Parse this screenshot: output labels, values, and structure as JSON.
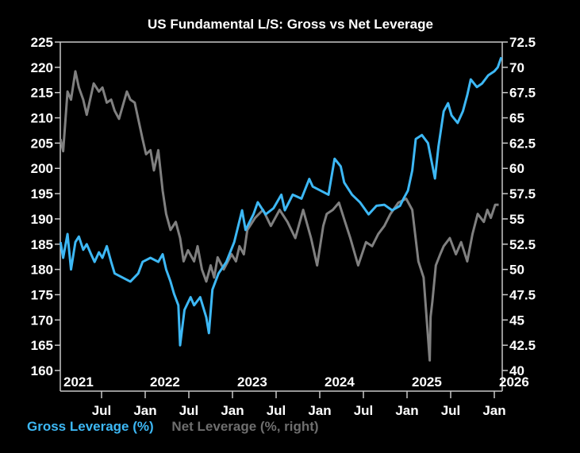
{
  "chart_data": {
    "type": "line",
    "title": "US Fundamental L/S: Gross vs Net Leverage",
    "xlabel": "",
    "ylabel": "",
    "ylabel_right": "",
    "x_axis": {
      "range": [
        2021.0,
        2026.05
      ],
      "year_labels": [
        {
          "label": "2021",
          "x": 2021.0
        },
        {
          "label": "2022",
          "x": 2022.0
        },
        {
          "label": "2023",
          "x": 2023.0
        },
        {
          "label": "2024",
          "x": 2024.0
        },
        {
          "label": "2025",
          "x": 2025.0
        },
        {
          "label": "2026",
          "x": 2026.0
        }
      ],
      "month_ticks": [
        {
          "label": "Jul",
          "x": 2021.5
        },
        {
          "label": "Jan",
          "x": 2022.0
        },
        {
          "label": "Jul",
          "x": 2022.5
        },
        {
          "label": "Jan",
          "x": 2023.0
        },
        {
          "label": "Jul",
          "x": 2023.5
        },
        {
          "label": "Jan",
          "x": 2024.0
        },
        {
          "label": "Jul",
          "x": 2024.5
        },
        {
          "label": "Jan",
          "x": 2025.0
        },
        {
          "label": "Jul",
          "x": 2025.5
        },
        {
          "label": "Jan",
          "x": 2026.0
        }
      ]
    },
    "y_left": {
      "range": [
        160,
        225
      ],
      "ticks": [
        160,
        165,
        170,
        175,
        180,
        185,
        190,
        195,
        200,
        205,
        210,
        215,
        220,
        225
      ]
    },
    "y_right": {
      "range": [
        40,
        72.5
      ],
      "ticks": [
        "40",
        "42.5",
        "45",
        "47.5",
        "50",
        "52.5",
        "55",
        "57.5",
        "60",
        "62.5",
        "65",
        "67.5",
        "70",
        "72.5"
      ]
    },
    "grid": false,
    "legend_position": "bottom-left",
    "series": [
      {
        "name": "Gross Leverage (%)",
        "axis": "left",
        "color": "#3db8f5",
        "x": [
          2021.03,
          2021.06,
          2021.11,
          2021.15,
          2021.2,
          2021.24,
          2021.29,
          2021.33,
          2021.38,
          2021.42,
          2021.47,
          2021.51,
          2021.56,
          2021.61,
          2021.65,
          2021.74,
          2021.83,
          2021.92,
          2021.97,
          2022.06,
          2022.15,
          2022.2,
          2022.24,
          2022.29,
          2022.33,
          2022.38,
          2022.4,
          2022.45,
          2022.52,
          2022.56,
          2022.63,
          2022.7,
          2022.73,
          2022.77,
          2022.84,
          2022.93,
          2023.02,
          2023.11,
          2023.15,
          2023.24,
          2023.29,
          2023.38,
          2023.47,
          2023.56,
          2023.6,
          2023.69,
          2023.79,
          2023.88,
          2023.92,
          2024.01,
          2024.1,
          2024.17,
          2024.24,
          2024.28,
          2024.37,
          2024.46,
          2024.56,
          2024.65,
          2024.74,
          2024.83,
          2024.92,
          2024.96,
          2025.01,
          2025.06,
          2025.1,
          2025.17,
          2025.24,
          2025.32,
          2025.36,
          2025.42,
          2025.47,
          2025.51,
          2025.58,
          2025.64,
          2025.69,
          2025.73,
          2025.8,
          2025.86,
          2025.93,
          2026.0,
          2026.04,
          2026.08
        ],
        "values": [
          185.4,
          182.3,
          187.0,
          180.0,
          185.4,
          186.5,
          183.9,
          185.0,
          183.0,
          181.5,
          183.4,
          182.3,
          184.6,
          181.5,
          179.2,
          178.4,
          177.6,
          179.2,
          181.5,
          182.3,
          181.5,
          183.0,
          180.0,
          177.6,
          175.2,
          172.9,
          165.0,
          172.0,
          174.5,
          172.9,
          174.5,
          170.5,
          167.4,
          176.0,
          179.2,
          181.5,
          185.4,
          191.7,
          187.8,
          190.9,
          193.3,
          190.9,
          192.1,
          194.8,
          191.7,
          194.8,
          194.0,
          197.9,
          196.4,
          195.6,
          194.8,
          201.9,
          200.4,
          197.2,
          194.8,
          193.3,
          190.9,
          192.6,
          192.8,
          191.7,
          192.6,
          194.0,
          195.6,
          199.6,
          205.8,
          206.6,
          205.0,
          198.0,
          204.3,
          211.3,
          212.9,
          210.5,
          209.0,
          211.3,
          214.5,
          217.6,
          216.1,
          216.8,
          218.4,
          219.2,
          220.0,
          222.0
        ]
      },
      {
        "name": "Net Leverage (%, right)",
        "axis": "right",
        "color": "#808080",
        "x": [
          2021.03,
          2021.06,
          2021.11,
          2021.15,
          2021.2,
          2021.24,
          2021.29,
          2021.33,
          2021.41,
          2021.47,
          2021.51,
          2021.56,
          2021.61,
          2021.65,
          2021.7,
          2021.74,
          2021.79,
          2021.83,
          2021.88,
          2021.92,
          2021.97,
          2022.01,
          2022.06,
          2022.1,
          2022.15,
          2022.2,
          2022.24,
          2022.29,
          2022.35,
          2022.4,
          2022.44,
          2022.49,
          2022.56,
          2022.6,
          2022.65,
          2022.7,
          2022.75,
          2022.79,
          2022.83,
          2022.9,
          2022.99,
          2023.04,
          2023.08,
          2023.13,
          2023.17,
          2023.26,
          2023.35,
          2023.44,
          2023.54,
          2023.63,
          2023.72,
          2023.81,
          2023.9,
          2023.97,
          2024.04,
          2024.08,
          2024.15,
          2024.22,
          2024.29,
          2024.35,
          2024.44,
          2024.53,
          2024.6,
          2024.67,
          2024.74,
          2024.81,
          2024.9,
          2024.99,
          2025.06,
          2025.13,
          2025.19,
          2025.22,
          2025.26,
          2025.27,
          2025.29,
          2025.33,
          2025.38,
          2025.42,
          2025.49,
          2025.56,
          2025.62,
          2025.69,
          2025.75,
          2025.81,
          2025.88,
          2025.92,
          2025.96,
          2026.01,
          2026.05
        ],
        "values": [
          62.9,
          61.7,
          67.6,
          66.8,
          69.6,
          68.0,
          66.8,
          65.3,
          68.4,
          67.6,
          68.0,
          66.5,
          66.8,
          65.7,
          64.9,
          66.1,
          67.6,
          66.8,
          66.5,
          64.9,
          62.9,
          61.4,
          61.8,
          59.8,
          61.8,
          57.8,
          55.5,
          53.9,
          54.7,
          53.1,
          50.8,
          51.9,
          50.8,
          52.3,
          50.0,
          48.8,
          50.4,
          49.2,
          51.2,
          50.0,
          51.5,
          50.8,
          52.3,
          51.5,
          53.9,
          55.1,
          55.9,
          54.3,
          55.9,
          54.7,
          53.1,
          55.9,
          53.1,
          50.4,
          54.3,
          55.5,
          55.9,
          56.6,
          54.7,
          53.1,
          50.4,
          52.7,
          52.3,
          53.5,
          54.3,
          55.5,
          56.6,
          57.0,
          55.9,
          50.8,
          49.2,
          45.7,
          41.0,
          45.3,
          46.8,
          50.4,
          51.5,
          52.3,
          53.1,
          51.5,
          52.7,
          50.8,
          53.5,
          55.5,
          54.7,
          55.9,
          55.1,
          56.4,
          56.4
        ]
      }
    ]
  },
  "legend": {
    "gross_label": "Gross Leverage (%)",
    "net_label": "Net Leverage (%, right)"
  }
}
